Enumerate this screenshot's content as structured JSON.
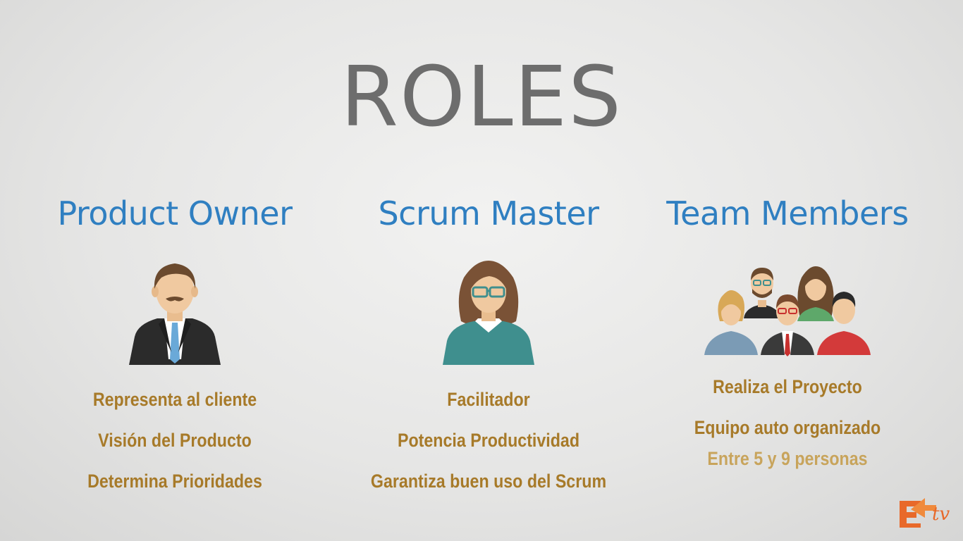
{
  "title": "ROLES",
  "roles": [
    {
      "name": "Product Owner",
      "icon": "businessman-icon",
      "items": [
        "Representa al cliente",
        "Visión del Producto",
        "Determina Prioridades"
      ]
    },
    {
      "name": "Scrum Master",
      "icon": "woman-glasses-icon",
      "items": [
        "Facilitador",
        "Potencia Productividad",
        "Garantiza buen uso del Scrum"
      ]
    },
    {
      "name": "Team Members",
      "icon": "team-group-icon",
      "items": [
        "Realiza el Proyecto",
        "Equipo auto organizado",
        "Entre 5 y 9 personas"
      ]
    }
  ],
  "logo": {
    "label": "tv",
    "icon": "channel-logo-icon"
  },
  "colors": {
    "title": "#6d6d6d",
    "role_name": "#2f7fc1",
    "item_text": "#a77a29",
    "logo": "#e8692a"
  }
}
